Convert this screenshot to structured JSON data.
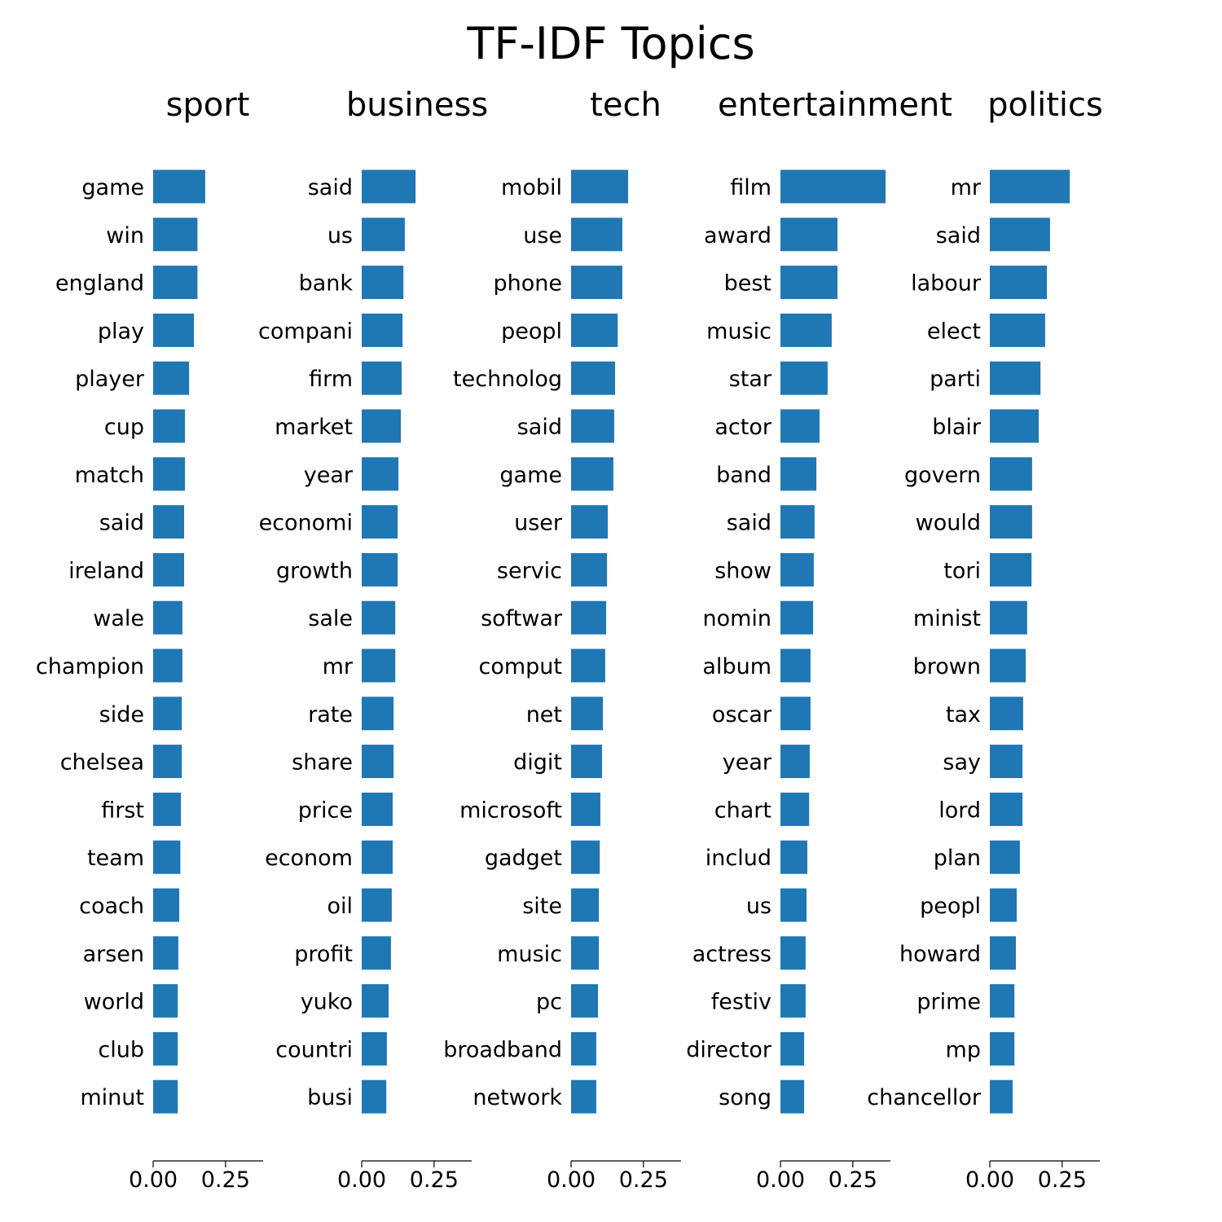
{
  "chart_data": {
    "type": "bar",
    "orientation": "horizontal",
    "title": "TF-IDF Topics",
    "xlim": [
      0,
      0.38
    ],
    "xticks": [
      "0.00",
      "0.25"
    ],
    "tick_values": [
      0,
      0.25
    ],
    "bar_color": "#1f77b4",
    "panels": [
      {
        "title": "sport",
        "categories": [
          "game",
          "win",
          "england",
          "play",
          "player",
          "cup",
          "match",
          "said",
          "ireland",
          "wale",
          "champion",
          "side",
          "chelsea",
          "first",
          "team",
          "coach",
          "arsen",
          "world",
          "club",
          "minut"
        ],
        "values": [
          0.18,
          0.153,
          0.153,
          0.141,
          0.124,
          0.11,
          0.11,
          0.107,
          0.107,
          0.101,
          0.101,
          0.099,
          0.099,
          0.096,
          0.094,
          0.09,
          0.087,
          0.085,
          0.085,
          0.085
        ]
      },
      {
        "title": "business",
        "categories": [
          "said",
          "us",
          "bank",
          "compani",
          "firm",
          "market",
          "year",
          "economi",
          "growth",
          "sale",
          "mr",
          "rate",
          "share",
          "price",
          "econom",
          "oil",
          "profit",
          "yuko",
          "countri",
          "busi"
        ],
        "values": [
          0.186,
          0.149,
          0.144,
          0.141,
          0.138,
          0.135,
          0.127,
          0.124,
          0.124,
          0.116,
          0.116,
          0.11,
          0.11,
          0.107,
          0.107,
          0.104,
          0.101,
          0.093,
          0.087,
          0.085
        ]
      },
      {
        "title": "tech",
        "categories": [
          "mobil",
          "use",
          "phone",
          "peopl",
          "technolog",
          "said",
          "game",
          "user",
          "servic",
          "softwar",
          "comput",
          "net",
          "digit",
          "microsoft",
          "gadget",
          "site",
          "music",
          "pc",
          "broadband",
          "network"
        ],
        "values": [
          0.197,
          0.177,
          0.177,
          0.161,
          0.152,
          0.149,
          0.146,
          0.127,
          0.124,
          0.121,
          0.118,
          0.11,
          0.107,
          0.101,
          0.099,
          0.096,
          0.096,
          0.093,
          0.087,
          0.087
        ]
      },
      {
        "title": "entertainment",
        "categories": [
          "film",
          "award",
          "best",
          "music",
          "star",
          "actor",
          "band",
          "said",
          "show",
          "nomin",
          "album",
          "oscar",
          "year",
          "chart",
          "includ",
          "us",
          "actress",
          "festiv",
          "director",
          "song"
        ],
        "values": [
          0.363,
          0.197,
          0.197,
          0.177,
          0.163,
          0.135,
          0.124,
          0.118,
          0.115,
          0.113,
          0.104,
          0.104,
          0.101,
          0.099,
          0.093,
          0.09,
          0.087,
          0.087,
          0.082,
          0.082
        ]
      },
      {
        "title": "politics",
        "categories": [
          "mr",
          "said",
          "labour",
          "elect",
          "parti",
          "blair",
          "govern",
          "would",
          "tori",
          "minist",
          "brown",
          "tax",
          "say",
          "lord",
          "plan",
          "peopl",
          "howard",
          "prime",
          "mp",
          "chancellor"
        ],
        "values": [
          0.276,
          0.208,
          0.197,
          0.191,
          0.175,
          0.169,
          0.146,
          0.146,
          0.144,
          0.129,
          0.124,
          0.115,
          0.113,
          0.113,
          0.104,
          0.093,
          0.09,
          0.085,
          0.085,
          0.079
        ]
      }
    ]
  }
}
